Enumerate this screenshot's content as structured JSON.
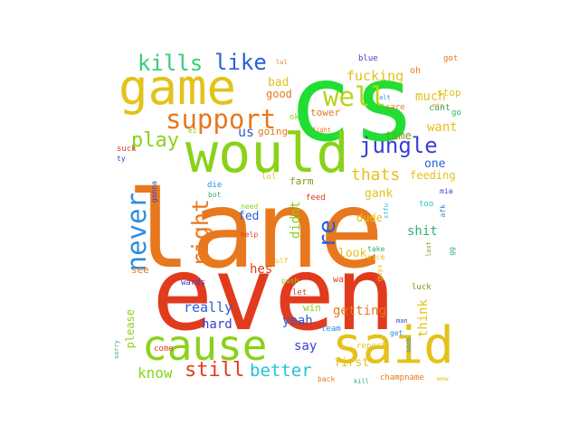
{
  "words": [
    {
      "text": "lane",
      "color": "#e8781e"
    },
    {
      "text": "even",
      "color": "#e23a1d"
    },
    {
      "text": "cs",
      "color": "#22dd33"
    },
    {
      "text": "would",
      "color": "#8ad21a"
    },
    {
      "text": "game",
      "color": "#e3c21b"
    },
    {
      "text": "said",
      "color": "#e3c21b"
    },
    {
      "text": "cause",
      "color": "#8ad21a"
    },
    {
      "text": "support",
      "color": "#e8781e"
    },
    {
      "text": "well",
      "color": "#b7d41a"
    },
    {
      "text": "kills",
      "color": "#33d07a"
    },
    {
      "text": "like",
      "color": "#2a5fd6"
    },
    {
      "text": "jungle",
      "color": "#3b3fd3"
    },
    {
      "text": "never",
      "color": "#2a8be0"
    },
    {
      "text": "right",
      "color": "#e8781e"
    },
    {
      "text": "play",
      "color": "#8ad21a"
    },
    {
      "text": "re",
      "color": "#2a5fd6"
    },
    {
      "text": "thats",
      "color": "#e3c21b"
    },
    {
      "text": "still",
      "color": "#e23a1d"
    },
    {
      "text": "better",
      "color": "#22c4d6"
    },
    {
      "text": "know",
      "color": "#8ad21a"
    },
    {
      "text": "fucking",
      "color": "#e3c21b"
    },
    {
      "text": "us",
      "color": "#2a5fd6"
    },
    {
      "text": "much",
      "color": "#e3c21b"
    },
    {
      "text": "want",
      "color": "#e3c21b"
    },
    {
      "text": "one",
      "color": "#2a5fd6"
    },
    {
      "text": "time",
      "color": "#7a9a1a"
    },
    {
      "text": "bad",
      "color": "#e3c21b"
    },
    {
      "text": "good",
      "color": "#e8781e"
    },
    {
      "text": "going",
      "color": "#e8781e"
    },
    {
      "text": "feeding",
      "color": "#e3c21b"
    },
    {
      "text": "gank",
      "color": "#e3c21b"
    },
    {
      "text": "fed",
      "color": "#2a5fd6"
    },
    {
      "text": "farm",
      "color": "#7a9a1a"
    },
    {
      "text": "didnt",
      "color": "#8ad21a"
    },
    {
      "text": "dude",
      "color": "#e3c21b"
    },
    {
      "text": "shit",
      "color": "#33b06a"
    },
    {
      "text": "look",
      "color": "#e3c21b"
    },
    {
      "text": "hes",
      "color": "#e23a1d"
    },
    {
      "text": "really",
      "color": "#2a5fd6"
    },
    {
      "text": "hard",
      "color": "#3b3fd3"
    },
    {
      "text": "getting",
      "color": "#e8781e"
    },
    {
      "text": "yeah",
      "color": "#2a5fd6"
    },
    {
      "text": "think",
      "color": "#e3c21b"
    },
    {
      "text": "say",
      "color": "#3b3fd3"
    },
    {
      "text": "first",
      "color": "#e3c21b"
    },
    {
      "text": "win",
      "color": "#8ad21a"
    },
    {
      "text": "please",
      "color": "#8ad21a"
    },
    {
      "text": "see",
      "color": "#e8781e"
    },
    {
      "text": "tower",
      "color": "#e8781e"
    },
    {
      "text": "cant",
      "color": "#33b06a"
    },
    {
      "text": "stop",
      "color": "#e3c21b"
    },
    {
      "text": "oh",
      "color": "#e8781e"
    },
    {
      "text": "blue",
      "color": "#3b3fd3"
    },
    {
      "text": "got",
      "color": "#e8781e"
    },
    {
      "text": "care",
      "color": "#e8781e"
    },
    {
      "text": "go",
      "color": "#33b06a"
    },
    {
      "text": "ok",
      "color": "#8ad21a"
    },
    {
      "text": "ez",
      "color": "#8ad21a"
    },
    {
      "text": "suck",
      "color": "#e23a1d"
    },
    {
      "text": "ty",
      "color": "#3b3fd3"
    },
    {
      "text": "lol",
      "color": "#e3c21b"
    },
    {
      "text": "feed",
      "color": "#e23a1d"
    },
    {
      "text": "die",
      "color": "#2a8be0"
    },
    {
      "text": "bot",
      "color": "#33b06a"
    },
    {
      "text": "need",
      "color": "#8ad21a"
    },
    {
      "text": "gonna",
      "color": "#3b3fd3"
    },
    {
      "text": "help",
      "color": "#e23a1d"
    },
    {
      "text": "too",
      "color": "#22c4d6"
    },
    {
      "text": "wards",
      "color": "#3b3fd3"
    },
    {
      "text": "ward",
      "color": "#e23a1d"
    },
    {
      "text": "let",
      "color": "#e23a1d"
    },
    {
      "text": "team",
      "color": "#2a8be0"
    },
    {
      "text": "report",
      "color": "#e3c21b"
    },
    {
      "text": "luck",
      "color": "#7a9a1a"
    },
    {
      "text": "come",
      "color": "#e23a1d"
    },
    {
      "text": "back",
      "color": "#e8781e"
    },
    {
      "text": "kill",
      "color": "#33b06a"
    },
    {
      "text": "champname",
      "color": "#e8781e"
    },
    {
      "text": "wow",
      "color": "#e3c21b"
    },
    {
      "text": "take",
      "color": "#33b06a"
    },
    {
      "text": "nice",
      "color": "#e3c21b"
    },
    {
      "text": "guys",
      "color": "#e3c21b"
    },
    {
      "text": "man",
      "color": "#3b3fd3"
    },
    {
      "text": "push",
      "color": "#8ad21a"
    },
    {
      "text": "sorry",
      "color": "#33b06a"
    },
    {
      "text": "noob",
      "color": "#2a8be0"
    },
    {
      "text": "lost",
      "color": "#7a9a1a"
    },
    {
      "text": "get",
      "color": "#2a8be0"
    },
    {
      "text": "gg",
      "color": "#33b06a"
    },
    {
      "text": "mia",
      "color": "#3b3fd3"
    },
    {
      "text": "stfu",
      "color": "#22c4d6"
    },
    {
      "text": "afk",
      "color": "#2a8be0"
    },
    {
      "text": "lul",
      "color": "#e8781e"
    },
    {
      "text": "ult",
      "color": "#8ad21a"
    },
    {
      "text": "fight",
      "color": "#e8781e"
    },
    {
      "text": "nic",
      "color": "#e8781e"
    },
    {
      "text": "alt",
      "color": "#2a8be0"
    },
    {
      "text": "ulf",
      "color": "#e3c21b"
    }
  ]
}
